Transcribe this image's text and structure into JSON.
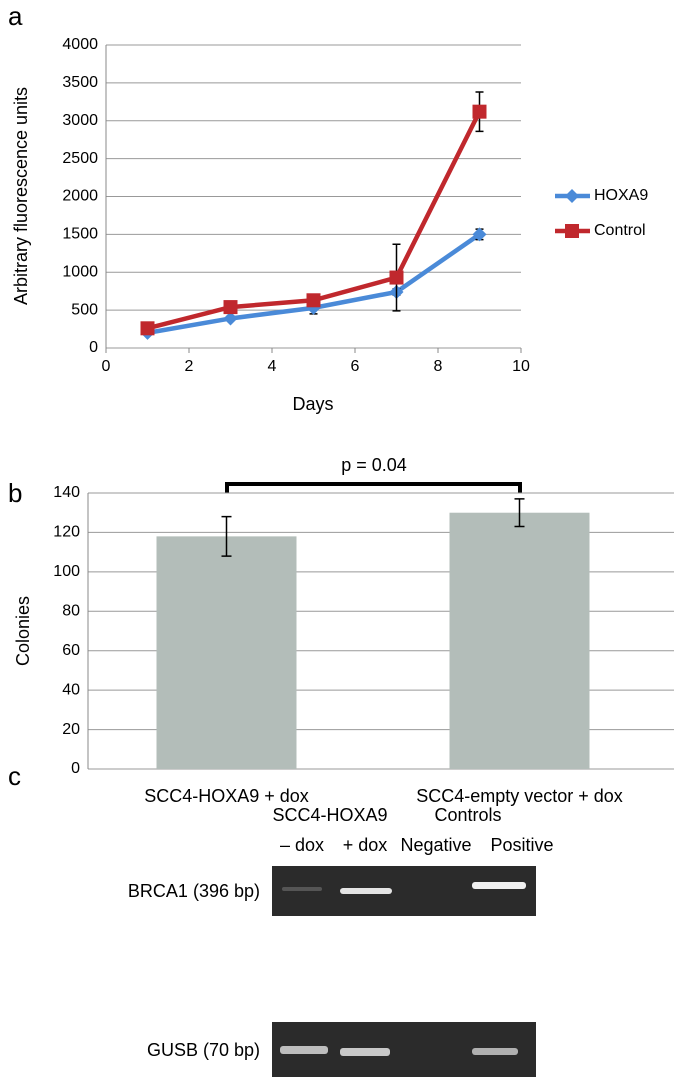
{
  "chart_data": [
    {
      "type": "line",
      "label": "a",
      "ylabel": "Arbitrary fluorescence units",
      "xlabel": "Days",
      "x": [
        1,
        3,
        5,
        7,
        9
      ],
      "series": [
        {
          "name": "HOXA9",
          "color": "#4a8ad8",
          "marker": "diamond",
          "values": [
            200,
            390,
            530,
            740,
            1500
          ],
          "errors": [
            20,
            30,
            80,
            40,
            70
          ]
        },
        {
          "name": "Control",
          "color": "#c0282d",
          "marker": "square",
          "values": [
            260,
            540,
            630,
            930,
            3120
          ],
          "errors": [
            30,
            40,
            50,
            440,
            260
          ]
        }
      ],
      "xlim": [
        0,
        10
      ],
      "xticks": [
        0,
        2,
        4,
        6,
        8,
        10
      ],
      "ylim": [
        0,
        4000
      ],
      "yticks": [
        0,
        500,
        1000,
        1500,
        2000,
        2500,
        3000,
        3500,
        4000
      ],
      "grid": true,
      "legend": "right"
    },
    {
      "type": "bar",
      "label": "b",
      "ylabel": "Colonies",
      "categories": [
        "SCC4-HOXA9 + dox",
        "SCC4-empty vector + dox"
      ],
      "values": [
        118,
        130
      ],
      "errors": [
        10,
        7
      ],
      "color": "#b3bdb9",
      "annotation": "p = 0.04",
      "ylim": [
        0,
        140
      ],
      "yticks": [
        0,
        20,
        40,
        60,
        80,
        100,
        120,
        140
      ],
      "grid": true
    }
  ],
  "gel": {
    "label": "c",
    "group_labels": [
      "SCC4-HOXA9",
      "Controls"
    ],
    "lane_labels": [
      "– dox",
      "+ dox",
      "Negative",
      "Positive"
    ],
    "row_labels": [
      "BRCA1 (396 bp)",
      "GUSB (70 bp)"
    ]
  }
}
